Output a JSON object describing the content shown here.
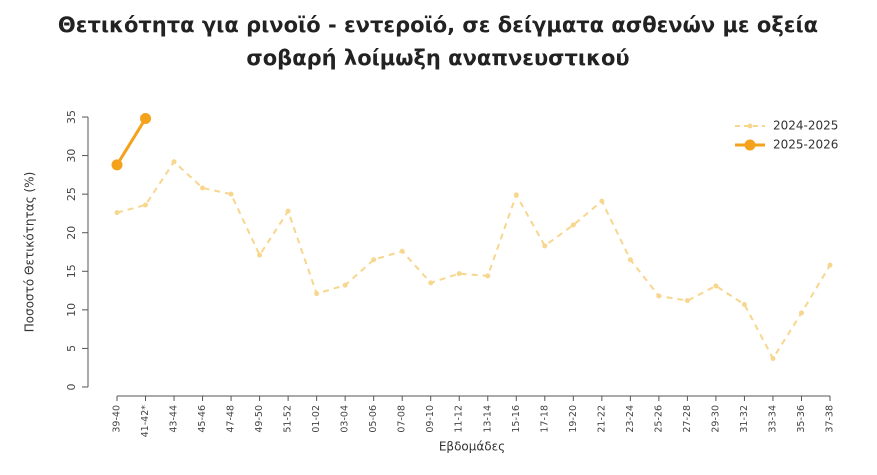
{
  "chart_data": {
    "type": "line",
    "title": [
      "Θετικότητα για ρινοϊό - εντεροϊό, σε δείγματα ασθενών με οξεία",
      "σοβαρή λοίμωξη αναπνευστικού"
    ],
    "y_label": "Ποσοστό Θετικότητας (%)",
    "x_label": "Εβδομάδες",
    "categories": [
      "39-40",
      "41-42*",
      "43-44",
      "45-46",
      "47-48",
      "49-50",
      "51-52",
      "01-02",
      "03-04",
      "05-06",
      "07-08",
      "09-10",
      "11-12",
      "13-14",
      "15-16",
      "17-18",
      "19-20",
      "21-22",
      "23-24",
      "25-26",
      "27-28",
      "29-30",
      "31-32",
      "33-34",
      "35-36",
      "37-38"
    ],
    "series": [
      {
        "name": "2024-2025",
        "color": "#f7d68e",
        "line_style": "dashed",
        "values": [
          22.6,
          23.6,
          29.2,
          25.8,
          25.0,
          17.1,
          22.8,
          12.1,
          13.2,
          16.5,
          17.6,
          13.5,
          14.7,
          14.4,
          24.9,
          18.3,
          21.0,
          24.1,
          16.5,
          11.8,
          11.2,
          13.1,
          10.7,
          3.7,
          9.6,
          15.8
        ]
      },
      {
        "name": "2025-2026",
        "color": "#f4a21c",
        "line_style": "solid",
        "values": [
          28.8,
          34.8,
          null,
          null,
          null,
          null,
          null,
          null,
          null,
          null,
          null,
          null,
          null,
          null,
          null,
          null,
          null,
          null,
          null,
          null,
          null,
          null,
          null,
          null,
          null,
          null
        ]
      }
    ],
    "ylim": [
      0,
      35
    ],
    "yticks": [
      0,
      5,
      10,
      15,
      20,
      25,
      30,
      35
    ],
    "legend": "top-right"
  }
}
